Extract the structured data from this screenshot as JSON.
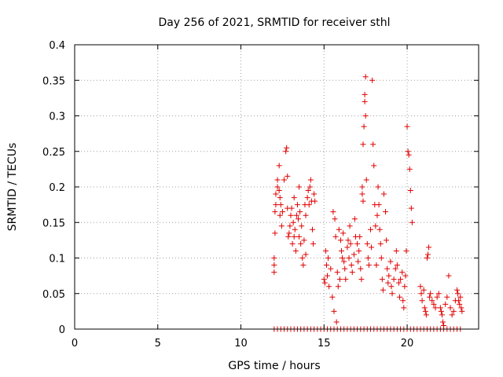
{
  "chart_data": {
    "type": "scatter",
    "title": "Day 256 of 2021, SRMTID for receiver sthl",
    "xlabel": "GPS time / hours",
    "ylabel": "SRMTID / TECUs",
    "xlim": [
      0,
      24.3
    ],
    "ylim": [
      0,
      0.4
    ],
    "x_ticks": [
      0,
      5,
      10,
      15,
      20
    ],
    "y_ticks": [
      0,
      0.05,
      0.1,
      0.15,
      0.2,
      0.25,
      0.3,
      0.35,
      0.4
    ],
    "x_tick_labels": [
      "0",
      "5",
      "10",
      "15",
      "20"
    ],
    "y_tick_labels": [
      "0",
      "0.05",
      "0.1",
      "0.15",
      "0.2",
      "0.25",
      "0.3",
      "0.35",
      "0.4"
    ],
    "grid": true,
    "marker": "plus",
    "marker_color": "#e00000",
    "points": [
      [
        12.0,
        0.1
      ],
      [
        12.0,
        0.09
      ],
      [
        12.0,
        0.08
      ],
      [
        12.05,
        0.135
      ],
      [
        12.05,
        0.165
      ],
      [
        12.1,
        0.175
      ],
      [
        12.1,
        0.19
      ],
      [
        12.2,
        0.2
      ],
      [
        12.2,
        0.21
      ],
      [
        12.3,
        0.23
      ],
      [
        12.3,
        0.195
      ],
      [
        12.35,
        0.185
      ],
      [
        12.35,
        0.16
      ],
      [
        12.4,
        0.175
      ],
      [
        12.45,
        0.145
      ],
      [
        12.5,
        0.165
      ],
      [
        12.6,
        0.21
      ],
      [
        12.7,
        0.25
      ],
      [
        12.75,
        0.255
      ],
      [
        12.8,
        0.17
      ],
      [
        12.8,
        0.215
      ],
      [
        12.85,
        0.13
      ],
      [
        12.9,
        0.135
      ],
      [
        12.95,
        0.145
      ],
      [
        13.0,
        0.16
      ],
      [
        13.05,
        0.17
      ],
      [
        13.1,
        0.12
      ],
      [
        13.15,
        0.15
      ],
      [
        13.2,
        0.13
      ],
      [
        13.2,
        0.185
      ],
      [
        13.25,
        0.14
      ],
      [
        13.3,
        0.11
      ],
      [
        13.35,
        0.16
      ],
      [
        13.4,
        0.175
      ],
      [
        13.45,
        0.155
      ],
      [
        13.5,
        0.2
      ],
      [
        13.5,
        0.13
      ],
      [
        13.55,
        0.165
      ],
      [
        13.6,
        0.12
      ],
      [
        13.65,
        0.145
      ],
      [
        13.7,
        0.1
      ],
      [
        13.75,
        0.09
      ],
      [
        13.8,
        0.125
      ],
      [
        13.85,
        0.175
      ],
      [
        13.9,
        0.16
      ],
      [
        13.9,
        0.105
      ],
      [
        14.0,
        0.185
      ],
      [
        14.05,
        0.195
      ],
      [
        14.1,
        0.175
      ],
      [
        14.15,
        0.2
      ],
      [
        14.2,
        0.21
      ],
      [
        14.25,
        0.18
      ],
      [
        14.3,
        0.14
      ],
      [
        14.35,
        0.12
      ],
      [
        14.4,
        0.19
      ],
      [
        14.45,
        0.18
      ],
      [
        15.0,
        0.07
      ],
      [
        15.05,
        0.065
      ],
      [
        15.1,
        0.11
      ],
      [
        15.15,
        0.09
      ],
      [
        15.2,
        0.075
      ],
      [
        15.25,
        0.1
      ],
      [
        15.3,
        0.06
      ],
      [
        15.4,
        0.085
      ],
      [
        15.5,
        0.045
      ],
      [
        15.55,
        0.165
      ],
      [
        15.6,
        0.025
      ],
      [
        15.65,
        0.155
      ],
      [
        15.7,
        0.13
      ],
      [
        15.75,
        0.01
      ],
      [
        15.8,
        0.08
      ],
      [
        15.85,
        0.06
      ],
      [
        15.9,
        0.14
      ],
      [
        15.95,
        0.07
      ],
      [
        16.0,
        0.125
      ],
      [
        16.05,
        0.11
      ],
      [
        16.1,
        0.1
      ],
      [
        16.15,
        0.135
      ],
      [
        16.2,
        0.095
      ],
      [
        16.25,
        0.085
      ],
      [
        16.3,
        0.07
      ],
      [
        16.4,
        0.115
      ],
      [
        16.45,
        0.125
      ],
      [
        16.5,
        0.1
      ],
      [
        16.55,
        0.145
      ],
      [
        16.6,
        0.12
      ],
      [
        16.65,
        0.09
      ],
      [
        16.7,
        0.08
      ],
      [
        16.8,
        0.105
      ],
      [
        16.85,
        0.155
      ],
      [
        16.9,
        0.13
      ],
      [
        17.0,
        0.12
      ],
      [
        17.05,
        0.095
      ],
      [
        17.1,
        0.11
      ],
      [
        17.15,
        0.13
      ],
      [
        17.2,
        0.085
      ],
      [
        17.25,
        0.07
      ],
      [
        17.3,
        0.2
      ],
      [
        17.3,
        0.19
      ],
      [
        17.35,
        0.18
      ],
      [
        17.35,
        0.26
      ],
      [
        17.4,
        0.285
      ],
      [
        17.45,
        0.32
      ],
      [
        17.45,
        0.33
      ],
      [
        17.5,
        0.355
      ],
      [
        17.5,
        0.3
      ],
      [
        17.55,
        0.21
      ],
      [
        17.6,
        0.12
      ],
      [
        17.65,
        0.1
      ],
      [
        17.7,
        0.09
      ],
      [
        17.8,
        0.14
      ],
      [
        17.85,
        0.115
      ],
      [
        17.9,
        0.35
      ],
      [
        17.95,
        0.26
      ],
      [
        18.0,
        0.23
      ],
      [
        18.05,
        0.175
      ],
      [
        18.1,
        0.145
      ],
      [
        18.15,
        0.09
      ],
      [
        18.2,
        0.16
      ],
      [
        18.25,
        0.2
      ],
      [
        18.3,
        0.175
      ],
      [
        18.35,
        0.14
      ],
      [
        18.4,
        0.12
      ],
      [
        18.45,
        0.1
      ],
      [
        18.5,
        0.07
      ],
      [
        18.55,
        0.055
      ],
      [
        18.6,
        0.19
      ],
      [
        18.7,
        0.165
      ],
      [
        18.75,
        0.125
      ],
      [
        18.8,
        0.085
      ],
      [
        18.85,
        0.065
      ],
      [
        18.9,
        0.075
      ],
      [
        19.0,
        0.095
      ],
      [
        19.05,
        0.06
      ],
      [
        19.1,
        0.05
      ],
      [
        19.2,
        0.07
      ],
      [
        19.3,
        0.085
      ],
      [
        19.35,
        0.11
      ],
      [
        19.4,
        0.09
      ],
      [
        19.5,
        0.065
      ],
      [
        19.55,
        0.045
      ],
      [
        19.6,
        0.07
      ],
      [
        19.7,
        0.08
      ],
      [
        19.75,
        0.04
      ],
      [
        19.8,
        0.03
      ],
      [
        19.85,
        0.06
      ],
      [
        19.9,
        0.075
      ],
      [
        19.95,
        0.11
      ],
      [
        20.0,
        0.285
      ],
      [
        20.05,
        0.25
      ],
      [
        20.1,
        0.245
      ],
      [
        20.15,
        0.225
      ],
      [
        20.2,
        0.195
      ],
      [
        20.25,
        0.17
      ],
      [
        20.3,
        0.15
      ],
      [
        20.8,
        0.06
      ],
      [
        20.85,
        0.05
      ],
      [
        20.9,
        0.04
      ],
      [
        21.0,
        0.055
      ],
      [
        21.05,
        0.03
      ],
      [
        21.1,
        0.025
      ],
      [
        21.15,
        0.02
      ],
      [
        21.2,
        0.1
      ],
      [
        21.25,
        0.105
      ],
      [
        21.3,
        0.115
      ],
      [
        21.35,
        0.045
      ],
      [
        21.4,
        0.05
      ],
      [
        21.5,
        0.04
      ],
      [
        21.6,
        0.035
      ],
      [
        21.7,
        0.03
      ],
      [
        21.8,
        0.045
      ],
      [
        21.9,
        0.05
      ],
      [
        22.0,
        0.03
      ],
      [
        22.05,
        0.025
      ],
      [
        22.1,
        0.02
      ],
      [
        22.15,
        0.01
      ],
      [
        22.2,
        0.005
      ],
      [
        22.3,
        0.035
      ],
      [
        22.4,
        0.045
      ],
      [
        22.5,
        0.075
      ],
      [
        22.6,
        0.03
      ],
      [
        22.7,
        0.02
      ],
      [
        22.8,
        0.025
      ],
      [
        22.9,
        0.04
      ],
      [
        23.0,
        0.055
      ],
      [
        23.05,
        0.05
      ],
      [
        23.1,
        0.04
      ],
      [
        23.15,
        0.035
      ],
      [
        23.2,
        0.045
      ],
      [
        23.25,
        0.03
      ],
      [
        23.3,
        0.025
      ]
    ],
    "zero_points_x": [
      12.0,
      12.2,
      12.4,
      12.6,
      12.8,
      13.0,
      13.2,
      13.4,
      13.6,
      13.8,
      14.0,
      14.2,
      14.4,
      14.6,
      14.8,
      15.0,
      15.2,
      15.4,
      15.6,
      15.8,
      16.0,
      16.2,
      16.4,
      16.6,
      16.8,
      17.0,
      17.2,
      17.4,
      17.6,
      17.8,
      18.0,
      18.2,
      18.4,
      18.6,
      18.8,
      19.0,
      19.2,
      19.4,
      19.6,
      19.8,
      20.0,
      20.2,
      20.4,
      20.6,
      20.8,
      21.0,
      21.2,
      21.4,
      21.6,
      21.8,
      22.0,
      22.2,
      22.4,
      22.6,
      22.8,
      23.0,
      23.2
    ]
  }
}
